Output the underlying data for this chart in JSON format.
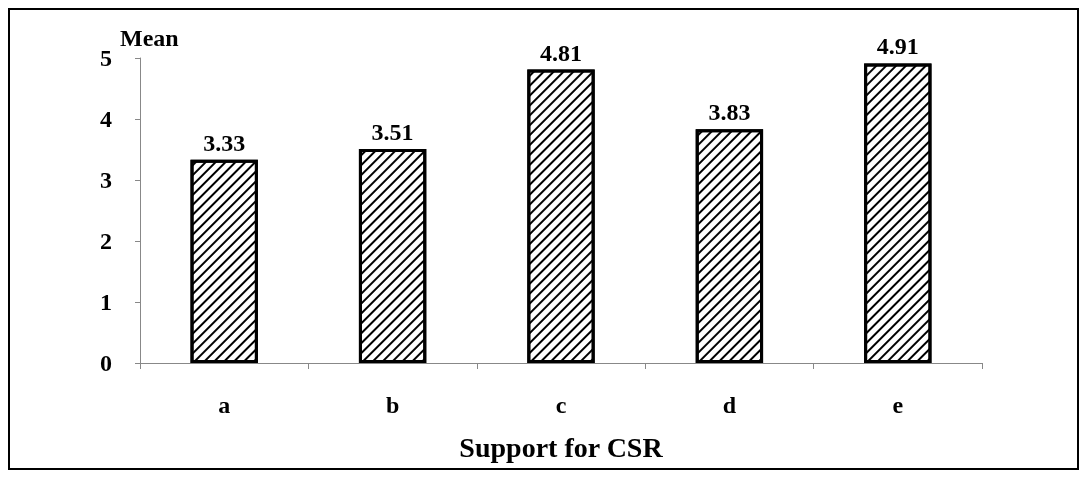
{
  "chart_data": {
    "type": "bar",
    "xlabel": "Support for CSR",
    "ylabel": "Mean",
    "categories": [
      "a",
      "b",
      "c",
      "d",
      "e"
    ],
    "values": [
      3.33,
      3.51,
      4.81,
      3.83,
      4.91
    ],
    "color": "#000000",
    "ylim": [
      0,
      5
    ],
    "yticks": [
      0,
      1,
      2,
      3,
      4,
      5
    ],
    "grid": false,
    "data_labels": true
  }
}
